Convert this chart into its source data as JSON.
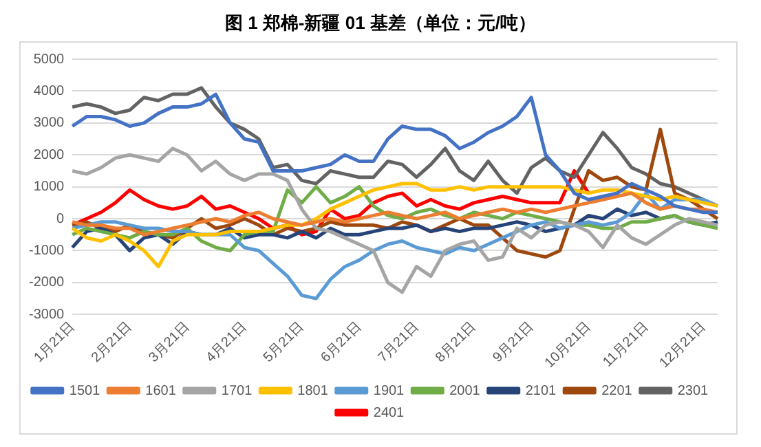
{
  "chart_data": {
    "type": "line",
    "title": "图 1  郑棉-新疆 01 基差（单位：元/吨）",
    "categories": [
      "1月21日",
      null,
      null,
      null,
      "2月21日",
      null,
      null,
      null,
      "3月21日",
      null,
      null,
      null,
      "4月21日",
      null,
      null,
      null,
      "5月21日",
      null,
      null,
      null,
      "6月21日",
      null,
      null,
      null,
      "7月21日",
      null,
      null,
      null,
      "8月21日",
      null,
      null,
      null,
      "9月21日",
      null,
      null,
      null,
      "10月21日",
      null,
      null,
      null,
      "11月21日",
      null,
      null,
      null,
      "12月21日",
      null
    ],
    "ylim": [
      -3000,
      5000
    ],
    "yticks": [
      -3000,
      -2000,
      -1000,
      0,
      1000,
      2000,
      3000,
      4000,
      5000
    ],
    "grid": "y",
    "legend": "bottom",
    "marker": "none",
    "line_style": "solid",
    "series": [
      {
        "name": "1501",
        "color": "#4472c4",
        "values": [
          2900,
          3200,
          3200,
          3100,
          2900,
          3000,
          3300,
          3500,
          3500,
          3600,
          3900,
          3000,
          2500,
          2400,
          1500,
          1500,
          1500,
          1600,
          1700,
          2000,
          1800,
          1800,
          2500,
          2900,
          2800,
          2800,
          2600,
          2200,
          2400,
          2700,
          2900,
          3200,
          3800,
          2000,
          1500,
          800,
          600,
          700,
          800,
          1100,
          900,
          700,
          400,
          300,
          200,
          200
        ]
      },
      {
        "name": "1601",
        "color": "#ed7d31",
        "values": [
          -100,
          -200,
          -200,
          -300,
          -300,
          -500,
          -400,
          -300,
          -200,
          -100,
          0,
          -100,
          100,
          200,
          0,
          -100,
          -200,
          -100,
          0,
          -100,
          0,
          100,
          200,
          100,
          0,
          100,
          200,
          0,
          100,
          200,
          300,
          200,
          300,
          200,
          300,
          400,
          500,
          600,
          700,
          800,
          500,
          300,
          400,
          300,
          300,
          200
        ]
      },
      {
        "name": "1701",
        "color": "#a5a5a5",
        "values": [
          1500,
          1400,
          1600,
          1900,
          2000,
          1900,
          1800,
          2200,
          2000,
          1500,
          1800,
          1400,
          1200,
          1400,
          1400,
          1200,
          300,
          -300,
          -400,
          -600,
          -800,
          -1000,
          -2000,
          -2300,
          -1500,
          -1800,
          -1000,
          -800,
          -700,
          -1300,
          -1200,
          -300,
          -600,
          -200,
          -100,
          -200,
          -400,
          -900,
          -200,
          -600,
          -800,
          -500,
          -200,
          0,
          -100,
          -200
        ]
      },
      {
        "name": "1801",
        "color": "#ffc000",
        "values": [
          -300,
          -600,
          -700,
          -500,
          -700,
          -1000,
          -1500,
          -700,
          -500,
          -500,
          -500,
          -400,
          -400,
          -400,
          -300,
          -200,
          -200,
          0,
          300,
          500,
          700,
          900,
          1000,
          1100,
          1100,
          900,
          900,
          1000,
          900,
          1000,
          1000,
          1000,
          1000,
          1000,
          1000,
          900,
          800,
          900,
          900,
          800,
          700,
          600,
          700,
          600,
          500,
          400
        ]
      },
      {
        "name": "1901",
        "color": "#5b9bd5",
        "values": [
          -300,
          -200,
          -100,
          -100,
          -200,
          -300,
          -300,
          -400,
          -400,
          -500,
          -500,
          -500,
          -900,
          -1000,
          -1400,
          -1800,
          -2400,
          -2500,
          -1900,
          -1500,
          -1300,
          -1000,
          -800,
          -700,
          -900,
          -1000,
          -1100,
          -900,
          -1000,
          -800,
          -600,
          -400,
          -200,
          -100,
          -300,
          -200,
          -100,
          -200,
          -100,
          200,
          800,
          300,
          600,
          600,
          600,
          400
        ]
      },
      {
        "name": "2001",
        "color": "#70ad47",
        "values": [
          -500,
          -300,
          -400,
          -500,
          -600,
          -400,
          -500,
          -500,
          -300,
          -700,
          -900,
          -1000,
          -500,
          -400,
          -400,
          900,
          500,
          1000,
          500,
          700,
          1000,
          400,
          100,
          0,
          200,
          300,
          100,
          0,
          200,
          100,
          0,
          200,
          100,
          0,
          -100,
          -200,
          -200,
          -300,
          -300,
          -100,
          -100,
          0,
          100,
          -100,
          -200,
          -300
        ]
      },
      {
        "name": "2101",
        "color": "#264478",
        "values": [
          -900,
          -400,
          -300,
          -500,
          -1000,
          -600,
          -500,
          -800,
          -400,
          -500,
          -500,
          -300,
          -600,
          -500,
          -500,
          -600,
          -400,
          -600,
          -300,
          -500,
          -500,
          -400,
          -300,
          -300,
          -200,
          -400,
          -300,
          -400,
          -300,
          -300,
          -200,
          -100,
          -200,
          -400,
          -300,
          -200,
          100,
          0,
          300,
          100,
          200,
          0,
          100,
          -100,
          -200,
          -100
        ]
      },
      {
        "name": "2201",
        "color": "#9e480e",
        "values": [
          -200,
          -100,
          -300,
          -400,
          -200,
          -400,
          -500,
          -600,
          -300,
          0,
          -300,
          -200,
          0,
          -200,
          -500,
          -300,
          -400,
          -300,
          -100,
          -200,
          -200,
          -200,
          -300,
          -100,
          -200,
          -400,
          -200,
          0,
          -200,
          -200,
          -600,
          -1000,
          -1100,
          -1200,
          -1000,
          300,
          1500,
          1200,
          1300,
          1000,
          900,
          2800,
          800,
          600,
          300,
          0
        ]
      },
      {
        "name": "2301",
        "color": "#636363",
        "values": [
          3500,
          3600,
          3500,
          3300,
          3400,
          3800,
          3700,
          3900,
          3900,
          4100,
          3500,
          3000,
          2800,
          2500,
          1600,
          1700,
          1200,
          1100,
          1500,
          1400,
          1300,
          1300,
          1800,
          1700,
          1300,
          1700,
          2200,
          1500,
          1200,
          1800,
          1200,
          800,
          1600,
          1900,
          1500,
          1300,
          2000,
          2700,
          2200,
          1600,
          1400,
          1100,
          1000,
          800,
          600,
          400
        ]
      },
      {
        "name": "2401",
        "color": "#ff0000",
        "values": [
          -200,
          0,
          200,
          500,
          900,
          600,
          400,
          300,
          400,
          700,
          300,
          400,
          200,
          0,
          -300,
          -200,
          -500,
          -400,
          300,
          0,
          100,
          500,
          700,
          800,
          400,
          600,
          400,
          300,
          500,
          600,
          700,
          600,
          500,
          500,
          500,
          1500,
          800,
          null,
          null,
          null,
          null,
          null,
          null,
          null,
          null,
          null
        ]
      }
    ]
  }
}
